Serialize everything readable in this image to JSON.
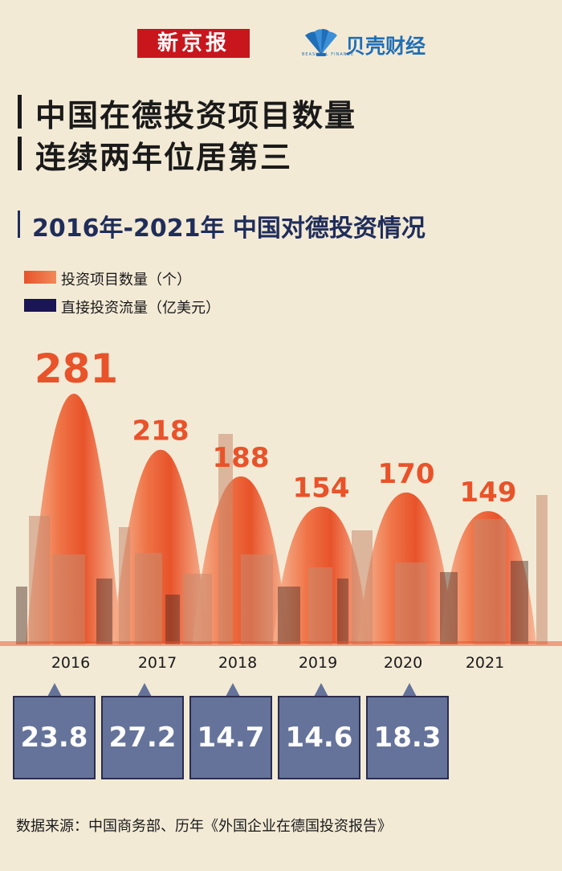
{
  "logos": {
    "xinjingbao": "新京报",
    "beike": "贝壳财经",
    "beike_sub": "BEASHELL FINANCE"
  },
  "headline": {
    "line1": "中国在德投资项目数量",
    "line2": "连续两年位居第三"
  },
  "colors": {
    "background": "#f3ead6",
    "projects": "#e8532a",
    "flow": "#65739a",
    "flow_border": "#2a2c4e",
    "title_navy": "#1f2d5a"
  },
  "chart_data": {
    "type": "bar",
    "title": "2016年-2021年 中国对德投资情况",
    "categories": [
      "2016",
      "2017",
      "2018",
      "2019",
      "2020",
      "2021"
    ],
    "series": [
      {
        "name": "投资项目数量（个）",
        "values": [
          281,
          218,
          188,
          154,
          170,
          149
        ]
      },
      {
        "name": "直接投资流量（亿美元）",
        "values": [
          23.8,
          27.2,
          14.7,
          14.6,
          18.3,
          null
        ]
      }
    ],
    "value_labels": [
      "281",
      "218",
      "188",
      "154",
      "170",
      "149"
    ],
    "flow_labels": [
      "23.8",
      "27.2",
      "14.7",
      "14.6",
      "18.3"
    ],
    "legend": [
      "投资项目数量（个）",
      "直接投资流量（亿美元）"
    ],
    "legend_position": "top-left",
    "xlabel": "",
    "ylabel": ""
  },
  "source": "数据来源：中国商务部、历年《外国企业在德国投资报告》"
}
